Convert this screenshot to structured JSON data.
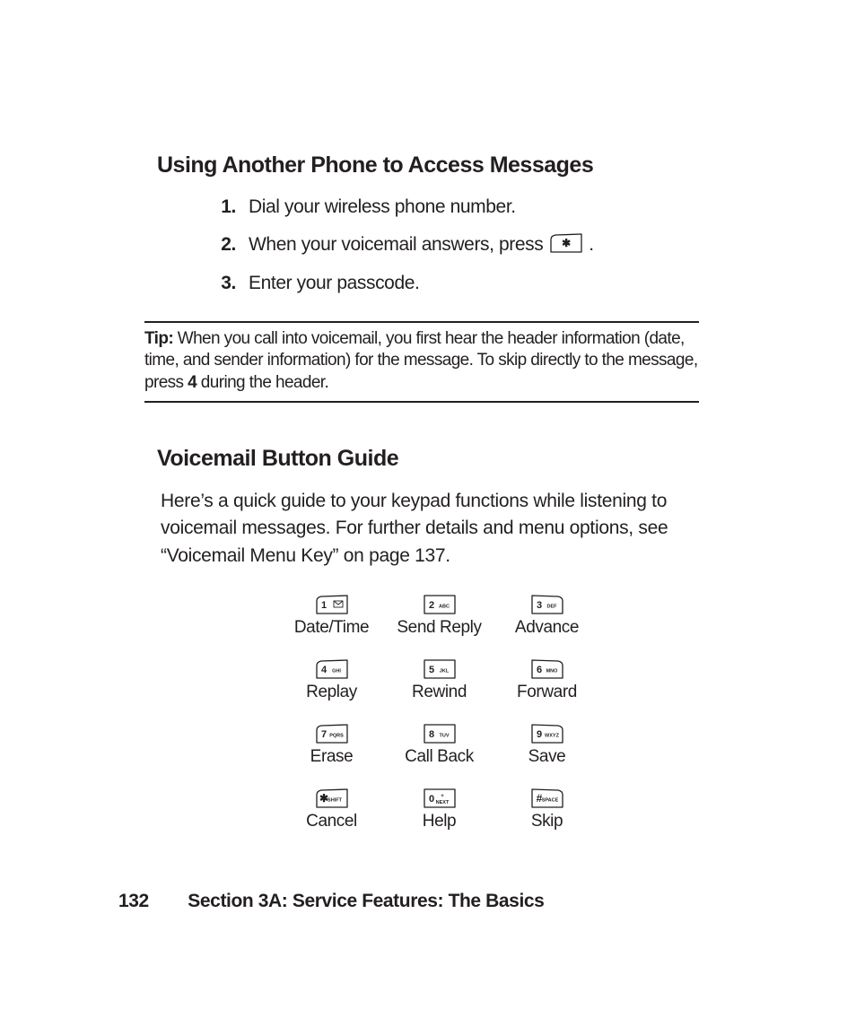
{
  "colors": {
    "text": "#231f20",
    "bg": "#ffffff",
    "key_stroke": "#231f20",
    "key_fill": "#ffffff"
  },
  "heading1": "Using Another Phone to Access Messages",
  "steps": [
    {
      "n": "1.",
      "text": "Dial your wireless phone number."
    },
    {
      "n": "2.",
      "text_before": "When your voicemail answers, press ",
      "inline_key": "star",
      "text_after": " ."
    },
    {
      "n": "3.",
      "text": "Enter your passcode."
    }
  ],
  "tip": {
    "label": "Tip:",
    "body_a": " When you call into voicemail, you first hear the header information (date, time, and sender information) for the message. To skip directly to the message, press ",
    "bold_mid": "4",
    "body_b": " during the header."
  },
  "heading2": "Voicemail Button Guide",
  "body2": "Here’s a quick guide to your keypad functions while listening to voicemail messages. For further details and menu options, see “Voicemail Menu Key” on page 137.",
  "keypad": [
    {
      "key": "1",
      "sub": "mail",
      "label": "Date/Time"
    },
    {
      "key": "2",
      "sub": "ABC",
      "label": "Send Reply"
    },
    {
      "key": "3",
      "sub": "DEF",
      "label": "Advance"
    },
    {
      "key": "4",
      "sub": "GHI",
      "label": "Replay"
    },
    {
      "key": "5",
      "sub": "JKL",
      "label": "Rewind"
    },
    {
      "key": "6",
      "sub": "MNO",
      "label": "Forward"
    },
    {
      "key": "7",
      "sub": "PQRS",
      "label": "Erase"
    },
    {
      "key": "8",
      "sub": "TUV",
      "label": "Call Back"
    },
    {
      "key": "9",
      "sub": "WXYZ",
      "label": "Save"
    },
    {
      "key": "star",
      "sub": "SHIFT",
      "label": "Cancel"
    },
    {
      "key": "0",
      "sub": "NEXT",
      "label": "Help"
    },
    {
      "key": "hash",
      "sub": "SPACE",
      "label": "Skip"
    }
  ],
  "key_style": {
    "w": 36,
    "h": 22,
    "stroke_w": 1.3,
    "digit_font": 11,
    "digit_weight": 700,
    "sub_font": 5.5,
    "sub_weight": 700,
    "corner_curve": 4
  },
  "footer": {
    "page": "132",
    "section": "Section 3A: Service Features: The Basics"
  }
}
